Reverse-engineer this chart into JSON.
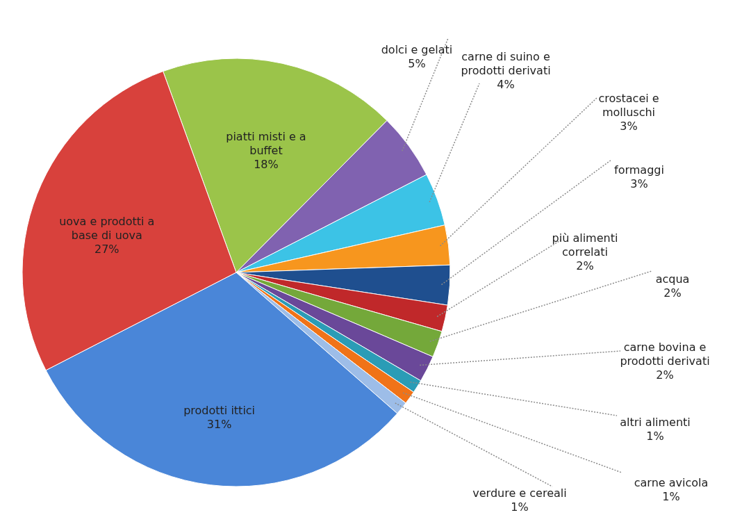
{
  "chart_data": {
    "type": "pie",
    "categories": [
      "piatti misti e a buffet",
      "dolci e gelati",
      "carne di suino e prodotti derivati",
      "crostacei e molluschi",
      "formaggi",
      "più alimenti correlati",
      "acqua",
      "carne bovina e prodotti derivati",
      "altri alimenti",
      "carne avicola",
      "verdure e cereali",
      "prodotti ittici",
      "uova e prodotti a base di uova"
    ],
    "values": [
      18,
      5,
      4,
      3,
      3,
      2,
      2,
      2,
      1,
      1,
      1,
      31,
      27
    ],
    "value_labels": [
      "18%",
      "5%",
      "4%",
      "3%",
      "3%",
      "2%",
      "2%",
      "2%",
      "1%",
      "1%",
      "1%",
      "31%",
      "27%"
    ],
    "colors": [
      "#9bc44a",
      "#8062b0",
      "#3cc3e6",
      "#f7961e",
      "#1f4f8f",
      "#c0282a",
      "#74a83a",
      "#6a4899",
      "#2b9cb6",
      "#f07318",
      "#9dbde8",
      "#4a86d8",
      "#d8413c"
    ]
  }
}
